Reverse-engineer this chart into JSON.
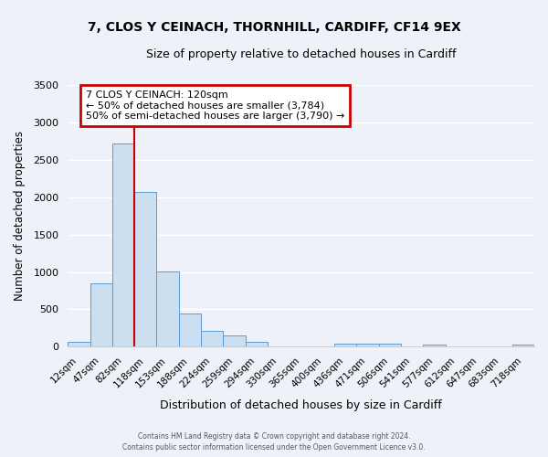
{
  "title": "7, CLOS Y CEINACH, THORNHILL, CARDIFF, CF14 9EX",
  "subtitle": "Size of property relative to detached houses in Cardiff",
  "xlabel": "Distribution of detached houses by size in Cardiff",
  "ylabel": "Number of detached properties",
  "bar_color": "#ccdff0",
  "bar_edge_color": "#5b9bd5",
  "background_color": "#eef2f8",
  "grid_color": "#ffffff",
  "categories": [
    "12sqm",
    "47sqm",
    "82sqm",
    "118sqm",
    "153sqm",
    "188sqm",
    "224sqm",
    "259sqm",
    "294sqm",
    "330sqm",
    "365sqm",
    "400sqm",
    "436sqm",
    "471sqm",
    "506sqm",
    "541sqm",
    "577sqm",
    "612sqm",
    "647sqm",
    "683sqm",
    "718sqm"
  ],
  "values": [
    60,
    850,
    2720,
    2070,
    1010,
    450,
    210,
    150,
    60,
    0,
    0,
    0,
    40,
    40,
    40,
    0,
    30,
    0,
    0,
    0,
    30
  ],
  "ylim": [
    0,
    3500
  ],
  "yticks": [
    0,
    500,
    1000,
    1500,
    2000,
    2500,
    3000,
    3500
  ],
  "property_bin_index": 3,
  "annotation_title": "7 CLOS Y CEINACH: 120sqm",
  "annotation_line1": "← 50% of detached houses are smaller (3,784)",
  "annotation_line2": "50% of semi-detached houses are larger (3,790) →",
  "annotation_box_facecolor": "#ffffff",
  "annotation_box_edgecolor": "#cc0000",
  "vline_color": "#cc0000",
  "footer1": "Contains HM Land Registry data © Crown copyright and database right 2024.",
  "footer2": "Contains public sector information licensed under the Open Government Licence v3.0."
}
